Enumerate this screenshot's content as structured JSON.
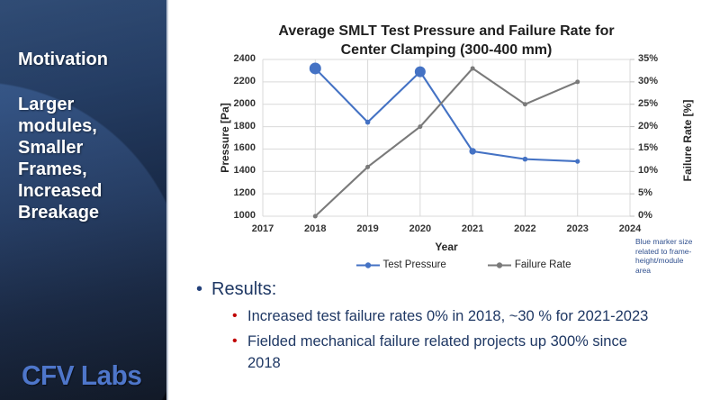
{
  "slide": {
    "sidebar": {
      "heading": "Motivation",
      "body": "Larger\nmodules,\nSmaller\nFrames,\nIncreased\nBreakage",
      "logo": "CFV Labs",
      "colors": {
        "logo_blue": "#4e76ca",
        "bg_top": "#3b5d8f",
        "bg_bottom": "#070b14"
      }
    },
    "results": {
      "heading": "Results:",
      "bullets": [
        "Increased test failure rates 0% in 2018, ~30 % for 2021-2023",
        "Fielded mechanical failure related projects up 300% since\n2018"
      ],
      "colors": {
        "text": "#1f3864",
        "bullet_red": "#c00000"
      }
    }
  },
  "chart_data": {
    "type": "line",
    "title": "Average SMLT Test Pressure and Failure Rate for\nCenter Clamping (300-400 mm)",
    "xlabel": "Year",
    "x_ticks": [
      2017,
      2018,
      2019,
      2020,
      2021,
      2022,
      2023,
      2024
    ],
    "x": [
      2018,
      2019,
      2020,
      2021,
      2022,
      2023
    ],
    "left_axis": {
      "label": "Pressure [Pa]",
      "min": 1000,
      "max": 2400,
      "step": 200
    },
    "right_axis": {
      "label": "Failure Rate [%]",
      "min": 0,
      "max": 35,
      "step": 5,
      "suffix": "%"
    },
    "series": [
      {
        "name": "Test Pressure",
        "axis": "left",
        "color": "#4472C4",
        "values": [
          2320,
          1840,
          2290,
          1580,
          1510,
          1490
        ],
        "marker_radii": [
          6.5,
          2.8,
          6.0,
          3.7,
          2.8,
          2.6
        ]
      },
      {
        "name": "Failure Rate",
        "axis": "right",
        "color": "#7a7a7a",
        "values": [
          0,
          11,
          20,
          33,
          25,
          30
        ],
        "marker_radii": [
          2.5,
          2.5,
          2.5,
          2.5,
          2.5,
          2.5
        ]
      }
    ],
    "grid": true,
    "grid_color": "#d9d9d9",
    "legend_position": "bottom",
    "annotation": "Blue marker size\nrelated to frame-\nheight/module\narea"
  }
}
